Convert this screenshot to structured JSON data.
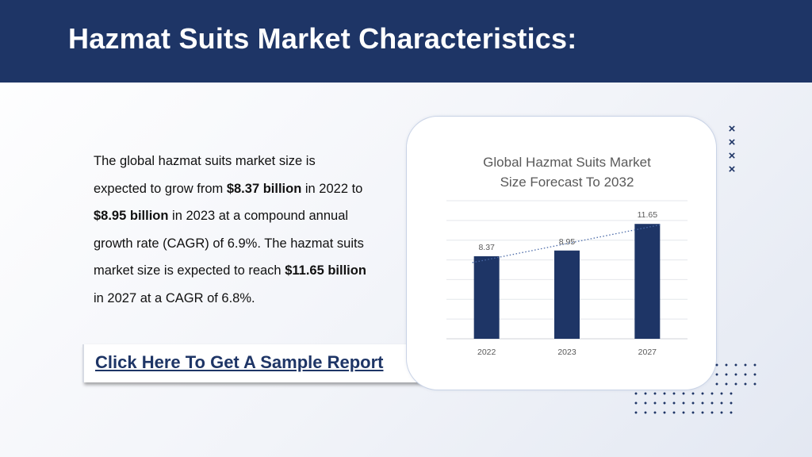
{
  "header": {
    "title": "Hazmat Suits Market Characteristics:"
  },
  "paragraph": {
    "t1": "The global hazmat suits market size is expected to grow from ",
    "b1": "$8.37 billion",
    "t2": " in 2022 to ",
    "b2": "$8.95 billion",
    "t3": " in 2023 at a compound annual growth rate (CAGR) of 6.9%. The hazmat suits market size is expected to reach ",
    "b3": "$11.65 billion",
    "t4": " in 2027 at a CAGR of 6.8%."
  },
  "cta": {
    "label": "Click Here To Get A Sample Report"
  },
  "decor": {
    "marks": "×"
  },
  "colors": {
    "brand": "#1e3566",
    "grid": "#e4e7ec",
    "text_muted": "#595959"
  },
  "chart_data": {
    "type": "bar",
    "title_lines": [
      "Global Hazmat Suits Market",
      "Size Forecast To 2032"
    ],
    "categories": [
      "2022",
      "2023",
      "2027"
    ],
    "values": [
      8.37,
      8.95,
      11.65
    ],
    "value_labels": [
      "8.37",
      "8.95",
      "11.65"
    ],
    "ylim": [
      0,
      14
    ],
    "grid": true,
    "trendline": "dotted-linear"
  }
}
